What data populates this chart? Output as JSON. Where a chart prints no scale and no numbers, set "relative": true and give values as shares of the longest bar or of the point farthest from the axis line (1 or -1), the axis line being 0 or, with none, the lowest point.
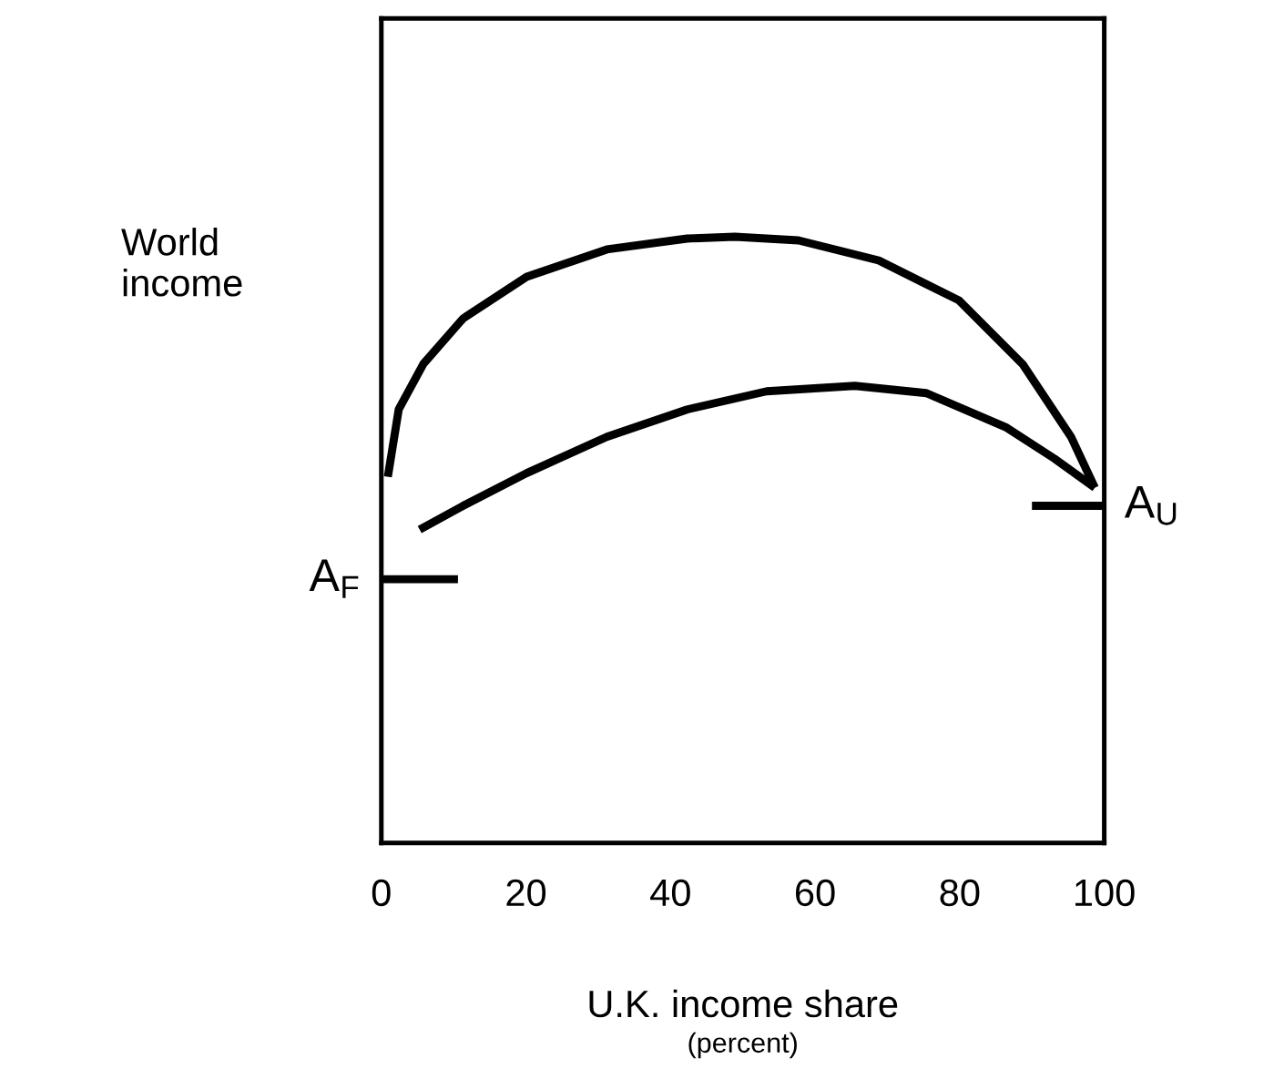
{
  "chart_data": {
    "type": "line",
    "relative": true,
    "xlabel": "U.K. income share",
    "ylabel": "World\nincome",
    "xlim": [
      0,
      100
    ],
    "xticks": [
      0,
      20,
      40,
      60,
      80,
      100
    ],
    "tick_labels": "x",
    "grid": false,
    "legend": false,
    "marker": "none",
    "line_style": "solid",
    "series": [
      {
        "color": "#000000",
        "x": [
          0.9,
          2.4,
          5.8,
          11.3,
          20.1,
          31.2,
          42.3,
          48.9,
          57.7,
          68.8,
          79.9,
          88.7,
          95.4,
          98.7
        ],
        "values": [
          0.604,
          0.715,
          0.79,
          0.865,
          0.934,
          0.979,
          0.997,
          1,
          0.994,
          0.961,
          0.895,
          0.79,
          0.67,
          0.586
        ]
      },
      {
        "color": "#000000",
        "x": [
          5.3,
          11.3,
          20.1,
          31.2,
          42.3,
          53.3,
          65.5,
          75.4,
          86.5,
          93.1,
          98.7
        ],
        "values": [
          0.517,
          0.556,
          0.61,
          0.67,
          0.715,
          0.745,
          0.754,
          0.742,
          0.685,
          0.634,
          0.586
        ]
      },
      {
        "color": "#000000",
        "x": [
          0,
          10.6
        ],
        "values": [
          0.435,
          0.435
        ]
      },
      {
        "color": "#000000",
        "x": [
          90,
          100
        ],
        "values": [
          0.556,
          0.556
        ]
      }
    ],
    "annotations": [
      {
        "text": "A$_{F}$",
        "x": 0,
        "y": 0.435
      },
      {
        "text": "A$_{U}$",
        "x": 100,
        "y": 0.556
      },
      "(percent)"
    ]
  }
}
